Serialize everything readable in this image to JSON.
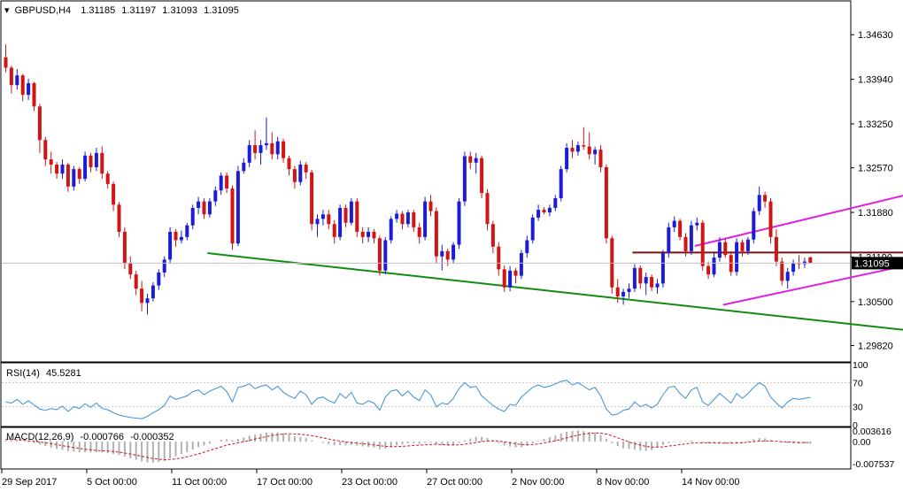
{
  "chart_data": {
    "type": "candlestick",
    "symbol_title": "GBPUSD,H4",
    "ohlc_readout": [
      "1.31185",
      "1.31197",
      "1.31093",
      "1.31095"
    ],
    "y_tick_labels": [
      "1.34630",
      "1.33940",
      "1.33250",
      "1.32570",
      "1.31880",
      "1.31190",
      "1.30500",
      "1.29820"
    ],
    "y_ticks": [
      1.3463,
      1.3394,
      1.3325,
      1.3257,
      1.3188,
      1.3119,
      1.305,
      1.2982
    ],
    "ylim": [
      1.2958,
      1.3514
    ],
    "current_price": 1.31095,
    "current_price_label": "1.31095",
    "x_tick_labels": [
      "29 Sep 2017",
      "5 Oct 00:00",
      "11 Oct 00:00",
      "17 Oct 00:00",
      "23 Oct 00:00",
      "27 Oct 00:00",
      "2 Nov 00:00",
      "8 Nov 00:00",
      "14 Nov 00:00"
    ],
    "colors": {
      "bull": "#1c1cd6",
      "bear": "#d01515",
      "trendline": "#118c11",
      "channel": "#e020e0",
      "resistance": "#7a1010",
      "rsi": "#3a8fd8",
      "macd_signal": "#c81818",
      "macd_hist": "#b0b0b0"
    },
    "trendline": {
      "x0": 36,
      "y0": 1.3125,
      "x1": 184,
      "y1": 1.2982
    },
    "channel_upper": {
      "x0": 122,
      "y0": 1.3136,
      "x1": 164,
      "y1": 1.3225
    },
    "channel_lower": {
      "x0": 127,
      "y0": 1.3045,
      "x1": 169,
      "y1": 1.3124
    },
    "resistance": {
      "x0": 111,
      "x1": 179,
      "y": 1.3126
    },
    "candles": [
      [
        1.3428,
        1.3448,
        1.3405,
        1.3412
      ],
      [
        1.3412,
        1.3415,
        1.3372,
        1.3385
      ],
      [
        1.3385,
        1.341,
        1.3378,
        1.34
      ],
      [
        1.34,
        1.3402,
        1.336,
        1.337
      ],
      [
        1.337,
        1.3395,
        1.3362,
        1.3388
      ],
      [
        1.3388,
        1.339,
        1.3345,
        1.3352
      ],
      [
        1.3352,
        1.3356,
        1.328,
        1.33
      ],
      [
        1.33,
        1.3305,
        1.326,
        1.327
      ],
      [
        1.327,
        1.3282,
        1.3248,
        1.3262
      ],
      [
        1.3262,
        1.3266,
        1.324,
        1.3248
      ],
      [
        1.3248,
        1.327,
        1.324,
        1.3262
      ],
      [
        1.3262,
        1.3265,
        1.322,
        1.3228
      ],
      [
        1.3228,
        1.326,
        1.3222,
        1.3255
      ],
      [
        1.3255,
        1.3258,
        1.3232,
        1.324
      ],
      [
        1.324,
        1.3282,
        1.3236,
        1.3276
      ],
      [
        1.3276,
        1.328,
        1.325,
        1.3258
      ],
      [
        1.3258,
        1.3288,
        1.3252,
        1.328
      ],
      [
        1.328,
        1.329,
        1.324,
        1.3248
      ],
      [
        1.3248,
        1.3252,
        1.3225,
        1.3232
      ],
      [
        1.3232,
        1.3236,
        1.319,
        1.32
      ],
      [
        1.32,
        1.3204,
        1.315,
        1.3158
      ],
      [
        1.3158,
        1.3165,
        1.31,
        1.311
      ],
      [
        1.311,
        1.312,
        1.3085,
        1.3092
      ],
      [
        1.3092,
        1.3098,
        1.306,
        1.307
      ],
      [
        1.307,
        1.3082,
        1.3035,
        1.3048
      ],
      [
        1.3048,
        1.3062,
        1.303,
        1.3055
      ],
      [
        1.3055,
        1.308,
        1.305,
        1.3075
      ],
      [
        1.3075,
        1.31,
        1.3068,
        1.3095
      ],
      [
        1.3095,
        1.312,
        1.3088,
        1.3115
      ],
      [
        1.3115,
        1.3165,
        1.311,
        1.3158
      ],
      [
        1.3158,
        1.3162,
        1.3135,
        1.3145
      ],
      [
        1.3145,
        1.316,
        1.314,
        1.315
      ],
      [
        1.315,
        1.3172,
        1.3145,
        1.3168
      ],
      [
        1.3168,
        1.32,
        1.3162,
        1.3195
      ],
      [
        1.3195,
        1.3212,
        1.3185,
        1.3205
      ],
      [
        1.3205,
        1.321,
        1.3178,
        1.3185
      ],
      [
        1.3185,
        1.321,
        1.318,
        1.3205
      ],
      [
        1.3205,
        1.3228,
        1.3198,
        1.3222
      ],
      [
        1.3222,
        1.325,
        1.3215,
        1.3245
      ],
      [
        1.3245,
        1.325,
        1.3218,
        1.3225
      ],
      [
        1.3225,
        1.323,
        1.313,
        1.314
      ],
      [
        1.314,
        1.326,
        1.3136,
        1.3252
      ],
      [
        1.3252,
        1.3272,
        1.3248,
        1.3265
      ],
      [
        1.3265,
        1.33,
        1.3258,
        1.3292
      ],
      [
        1.3292,
        1.3315,
        1.327,
        1.328
      ],
      [
        1.328,
        1.33,
        1.3262,
        1.3292
      ],
      [
        1.3292,
        1.3335,
        1.3285,
        1.3295
      ],
      [
        1.3295,
        1.3312,
        1.327,
        1.3278
      ],
      [
        1.3278,
        1.3305,
        1.327,
        1.3298
      ],
      [
        1.3298,
        1.3302,
        1.3265,
        1.3272
      ],
      [
        1.3272,
        1.3276,
        1.3245,
        1.3255
      ],
      [
        1.3255,
        1.326,
        1.3225,
        1.3235
      ],
      [
        1.3235,
        1.3268,
        1.323,
        1.3262
      ],
      [
        1.3262,
        1.3266,
        1.324,
        1.325
      ],
      [
        1.325,
        1.3254,
        1.316,
        1.317
      ],
      [
        1.317,
        1.3185,
        1.315,
        1.3178
      ],
      [
        1.3178,
        1.3192,
        1.3168,
        1.3185
      ],
      [
        1.3185,
        1.3192,
        1.3162,
        1.317
      ],
      [
        1.317,
        1.3176,
        1.314,
        1.315
      ],
      [
        1.315,
        1.32,
        1.3145,
        1.3195
      ],
      [
        1.3195,
        1.32,
        1.3165,
        1.3172
      ],
      [
        1.3172,
        1.321,
        1.3168,
        1.3205
      ],
      [
        1.3205,
        1.321,
        1.315,
        1.3158
      ],
      [
        1.3158,
        1.3165,
        1.314,
        1.315
      ],
      [
        1.315,
        1.3165,
        1.3142,
        1.3158
      ],
      [
        1.3158,
        1.3162,
        1.314,
        1.3148
      ],
      [
        1.3148,
        1.3152,
        1.309,
        1.3098
      ],
      [
        1.3098,
        1.315,
        1.3092,
        1.3145
      ],
      [
        1.3145,
        1.3182,
        1.314,
        1.3178
      ],
      [
        1.3178,
        1.3192,
        1.3172,
        1.3186
      ],
      [
        1.3186,
        1.319,
        1.3162,
        1.317
      ],
      [
        1.317,
        1.3192,
        1.3165,
        1.3188
      ],
      [
        1.3188,
        1.3192,
        1.3158,
        1.3165
      ],
      [
        1.3165,
        1.3172,
        1.314,
        1.315
      ],
      [
        1.315,
        1.3212,
        1.3145,
        1.3205
      ],
      [
        1.3205,
        1.3215,
        1.3182,
        1.319
      ],
      [
        1.319,
        1.3196,
        1.311,
        1.312
      ],
      [
        1.312,
        1.3138,
        1.3098,
        1.3128
      ],
      [
        1.3128,
        1.3132,
        1.3105,
        1.3115
      ],
      [
        1.3115,
        1.3142,
        1.311,
        1.3138
      ],
      [
        1.3138,
        1.321,
        1.3132,
        1.3205
      ],
      [
        1.3205,
        1.3282,
        1.3198,
        1.3275
      ],
      [
        1.3275,
        1.3282,
        1.3255,
        1.3265
      ],
      [
        1.3265,
        1.328,
        1.3248,
        1.3272
      ],
      [
        1.3272,
        1.3276,
        1.321,
        1.3218
      ],
      [
        1.3218,
        1.3224,
        1.316,
        1.317
      ],
      [
        1.317,
        1.3175,
        1.3125,
        1.3135
      ],
      [
        1.3135,
        1.3142,
        1.309,
        1.31
      ],
      [
        1.31,
        1.3106,
        1.3065,
        1.3072
      ],
      [
        1.3072,
        1.3105,
        1.3066,
        1.3098
      ],
      [
        1.3098,
        1.3102,
        1.3078,
        1.309
      ],
      [
        1.309,
        1.313,
        1.3085,
        1.3125
      ],
      [
        1.3125,
        1.3152,
        1.3118,
        1.3145
      ],
      [
        1.3145,
        1.3185,
        1.314,
        1.318
      ],
      [
        1.318,
        1.32,
        1.3175,
        1.3192
      ],
      [
        1.3192,
        1.3196,
        1.3185,
        1.3188
      ],
      [
        1.3188,
        1.32,
        1.3182,
        1.3195
      ],
      [
        1.3195,
        1.3215,
        1.319,
        1.321
      ],
      [
        1.321,
        1.326,
        1.3205,
        1.3255
      ],
      [
        1.3255,
        1.3295,
        1.325,
        1.3288
      ],
      [
        1.3288,
        1.33,
        1.3272,
        1.3282
      ],
      [
        1.3282,
        1.3298,
        1.3276,
        1.3292
      ],
      [
        1.3292,
        1.332,
        1.3285,
        1.329
      ],
      [
        1.329,
        1.3312,
        1.327,
        1.3278
      ],
      [
        1.3278,
        1.329,
        1.3262,
        1.3285
      ],
      [
        1.3285,
        1.3292,
        1.325,
        1.3258
      ],
      [
        1.3258,
        1.3262,
        1.314,
        1.3148
      ],
      [
        1.3148,
        1.3152,
        1.3062,
        1.3072
      ],
      [
        1.3072,
        1.3085,
        1.3048,
        1.3058
      ],
      [
        1.3058,
        1.307,
        1.3045,
        1.3065
      ],
      [
        1.3065,
        1.3078,
        1.3055,
        1.307
      ],
      [
        1.307,
        1.3108,
        1.3065,
        1.3102
      ],
      [
        1.3102,
        1.3106,
        1.307,
        1.3078
      ],
      [
        1.3078,
        1.3095,
        1.306,
        1.3088
      ],
      [
        1.3088,
        1.3092,
        1.3066,
        1.3072
      ],
      [
        1.3072,
        1.3085,
        1.3062,
        1.3078
      ],
      [
        1.3078,
        1.313,
        1.3072,
        1.3125
      ],
      [
        1.3125,
        1.3172,
        1.3118,
        1.3165
      ],
      [
        1.3165,
        1.3182,
        1.3158,
        1.3175
      ],
      [
        1.3175,
        1.3178,
        1.3145,
        1.315
      ],
      [
        1.315,
        1.3156,
        1.312,
        1.3128
      ],
      [
        1.3128,
        1.3175,
        1.3122,
        1.3168
      ],
      [
        1.3168,
        1.318,
        1.316,
        1.3172
      ],
      [
        1.3172,
        1.3176,
        1.3098,
        1.3105
      ],
      [
        1.3105,
        1.3112,
        1.3085,
        1.3092
      ],
      [
        1.3092,
        1.3125,
        1.3088,
        1.3118
      ],
      [
        1.3118,
        1.315,
        1.3112,
        1.3142
      ],
      [
        1.3142,
        1.3148,
        1.3118,
        1.3122
      ],
      [
        1.3122,
        1.3128,
        1.309,
        1.3096
      ],
      [
        1.3096,
        1.3148,
        1.309,
        1.3142
      ],
      [
        1.3142,
        1.3146,
        1.312,
        1.3128
      ],
      [
        1.3128,
        1.315,
        1.3122,
        1.3146
      ],
      [
        1.3146,
        1.3195,
        1.314,
        1.319
      ],
      [
        1.319,
        1.3228,
        1.3184,
        1.3215
      ],
      [
        1.3215,
        1.322,
        1.3195,
        1.3205
      ],
      [
        1.3205,
        1.321,
        1.314,
        1.315
      ],
      [
        1.315,
        1.3162,
        1.3105,
        1.3112
      ],
      [
        1.3112,
        1.3118,
        1.3075,
        1.3082
      ],
      [
        1.3082,
        1.3102,
        1.307,
        1.3096
      ],
      [
        1.3096,
        1.3115,
        1.309,
        1.311
      ],
      [
        1.311,
        1.3122,
        1.31,
        1.3108
      ],
      [
        1.3108,
        1.3118,
        1.3102,
        1.3112
      ],
      [
        1.31185,
        1.31197,
        1.31093,
        1.31095
      ]
    ],
    "rsi": {
      "title": "RSI(14)",
      "value_label": "45.5281",
      "ylim": [
        0,
        100
      ],
      "levels": [
        30,
        70
      ],
      "y_tick_labels": [
        "100",
        "70",
        "30",
        "0"
      ],
      "y_ticks": [
        100,
        70,
        30,
        0
      ],
      "values": [
        38,
        36,
        42,
        34,
        40,
        33,
        26,
        24,
        27,
        25,
        31,
        22,
        30,
        27,
        35,
        29,
        36,
        27,
        25,
        20,
        16,
        14,
        12,
        11,
        10,
        14,
        20,
        25,
        32,
        48,
        42,
        45,
        48,
        55,
        58,
        50,
        56,
        60,
        64,
        55,
        38,
        62,
        64,
        68,
        60,
        64,
        66,
        58,
        64,
        54,
        48,
        44,
        56,
        50,
        34,
        44,
        46,
        40,
        36,
        52,
        44,
        54,
        36,
        34,
        40,
        36,
        24,
        46,
        56,
        58,
        48,
        56,
        46,
        40,
        58,
        50,
        30,
        36,
        34,
        44,
        60,
        70,
        62,
        64,
        48,
        40,
        32,
        26,
        22,
        34,
        32,
        46,
        54,
        62,
        66,
        62,
        64,
        68,
        72,
        74,
        66,
        70,
        64,
        58,
        62,
        48,
        26,
        16,
        18,
        24,
        26,
        38,
        30,
        34,
        28,
        34,
        50,
        62,
        64,
        52,
        44,
        58,
        62,
        38,
        32,
        42,
        52,
        44,
        36,
        52,
        44,
        52,
        62,
        70,
        64,
        46,
        36,
        28,
        38,
        44,
        42,
        44,
        45.5281
      ]
    },
    "macd": {
      "title": "MACD(12,26,9)",
      "main_label": "-0.000766",
      "signal_label": "-0.000352",
      "ylim": [
        -0.00875,
        0.00425
      ],
      "y_tick_labels": [
        "0.003616",
        "0.00",
        "-0.007537"
      ],
      "y_ticks": [
        0.003616,
        0.0,
        -0.007537
      ],
      "values": [
        0.0005,
        0.0003,
        0.0002,
        0.0,
        -0.0002,
        -0.0005,
        -0.001,
        -0.0015,
        -0.002,
        -0.0025,
        -0.0028,
        -0.0032,
        -0.0034,
        -0.0036,
        -0.0036,
        -0.0037,
        -0.0036,
        -0.0037,
        -0.0039,
        -0.0042,
        -0.0046,
        -0.0051,
        -0.0057,
        -0.0062,
        -0.0068,
        -0.0071,
        -0.0072,
        -0.007,
        -0.0066,
        -0.0057,
        -0.005,
        -0.0043,
        -0.0036,
        -0.0027,
        -0.0019,
        -0.0013,
        -0.0007,
        -0.0001,
        0.0006,
        0.0008,
        0.0005,
        0.0009,
        0.0014,
        0.002,
        0.0024,
        0.0027,
        0.0031,
        0.0031,
        0.0031,
        0.0029,
        0.0024,
        0.0018,
        0.0016,
        0.0012,
        0.0004,
        0.0,
        -0.0004,
        -0.0009,
        -0.0013,
        -0.0012,
        -0.0013,
        -0.0011,
        -0.0014,
        -0.0016,
        -0.0018,
        -0.0021,
        -0.0026,
        -0.0024,
        -0.0019,
        -0.0013,
        -0.001,
        -0.0006,
        -0.0006,
        -0.0008,
        -0.0004,
        -0.0003,
        -0.0008,
        -0.0011,
        -0.0014,
        -0.0013,
        -0.0005,
        0.0005,
        0.0011,
        0.0016,
        0.0016,
        0.0012,
        0.0004,
        -0.0005,
        -0.0013,
        -0.0017,
        -0.002,
        -0.0019,
        -0.0014,
        -0.0006,
        0.0002,
        0.0009,
        0.0015,
        0.0021,
        0.0028,
        0.0034,
        0.0036,
        0.0038,
        0.0036,
        0.0033,
        0.0031,
        0.0022,
        0.0009,
        -0.0005,
        -0.0015,
        -0.0023,
        -0.0025,
        -0.0028,
        -0.0031,
        -0.0032,
        -0.0029,
        -0.002,
        -0.0011,
        -0.0005,
        -0.0002,
        -0.0001,
        0.0002,
        0.0004,
        0.0,
        -0.0004,
        -0.0006,
        -0.0006,
        -0.0006,
        -0.0008,
        -0.0006,
        -0.0006,
        -0.0004,
        0.0002,
        0.0008,
        0.0012,
        0.0011,
        0.0006,
        0.0,
        -0.0004,
        -0.0005,
        -0.0006,
        -0.0007,
        -0.0007,
        -0.000766
      ],
      "signal": [
        0.0008,
        0.0007,
        0.0006,
        0.0004,
        0.0003,
        0.0001,
        -0.0001,
        -0.0004,
        -0.0007,
        -0.001,
        -0.0014,
        -0.0017,
        -0.002,
        -0.0023,
        -0.0026,
        -0.0028,
        -0.003,
        -0.0031,
        -0.0032,
        -0.0034,
        -0.0036,
        -0.0039,
        -0.0042,
        -0.0046,
        -0.005,
        -0.0054,
        -0.0058,
        -0.006,
        -0.0062,
        -0.0061,
        -0.0059,
        -0.0056,
        -0.0052,
        -0.0047,
        -0.0042,
        -0.0036,
        -0.003,
        -0.0024,
        -0.0018,
        -0.0012,
        -0.0008,
        -0.0004,
        0.0,
        0.0004,
        0.0009,
        0.0013,
        0.0017,
        0.0021,
        0.0024,
        0.0026,
        0.0027,
        0.0026,
        0.0025,
        0.0023,
        0.002,
        0.0017,
        0.0013,
        0.0009,
        0.0005,
        0.0002,
        -0.0001,
        -0.0003,
        -0.0005,
        -0.0007,
        -0.0009,
        -0.0011,
        -0.0014,
        -0.0016,
        -0.0017,
        -0.0017,
        -0.0016,
        -0.0015,
        -0.0013,
        -0.0012,
        -0.0011,
        -0.001,
        -0.0009,
        -0.001,
        -0.0011,
        -0.0011,
        -0.0011,
        -0.0009,
        -0.0006,
        -0.0003,
        0.0,
        0.0002,
        0.0003,
        0.0002,
        -0.0001,
        -0.0004,
        -0.0007,
        -0.001,
        -0.0011,
        -0.001,
        -0.0008,
        -0.0005,
        -0.0001,
        0.0003,
        0.0008,
        0.0013,
        0.0018,
        0.0022,
        0.0026,
        0.0028,
        0.003,
        0.0029,
        0.0026,
        0.002,
        0.0013,
        0.0006,
        -0.0001,
        -0.0007,
        -0.0012,
        -0.0016,
        -0.0019,
        -0.0019,
        -0.0018,
        -0.0015,
        -0.0013,
        -0.001,
        -0.0008,
        -0.0005,
        -0.0004,
        -0.0004,
        -0.0004,
        -0.0004,
        -0.0005,
        -0.0005,
        -0.0005,
        -0.0005,
        -0.0004,
        -0.0002,
        0.0,
        0.0002,
        0.0002,
        0.0002,
        0.0001,
        0.0,
        -0.0001,
        -0.0002,
        -0.0003,
        -0.0003,
        -0.000352
      ]
    }
  }
}
